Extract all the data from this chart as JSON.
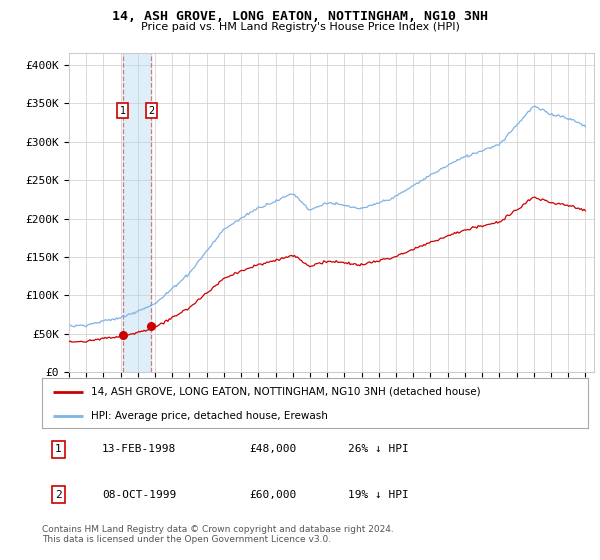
{
  "title": "14, ASH GROVE, LONG EATON, NOTTINGHAM, NG10 3NH",
  "subtitle": "Price paid vs. HM Land Registry's House Price Index (HPI)",
  "ylabel_ticks": [
    "£0",
    "£50K",
    "£100K",
    "£150K",
    "£200K",
    "£250K",
    "£300K",
    "£350K",
    "£400K"
  ],
  "ytick_values": [
    0,
    50000,
    100000,
    150000,
    200000,
    250000,
    300000,
    350000,
    400000
  ],
  "ylim": [
    0,
    415000
  ],
  "xlim_start": 1995.0,
  "xlim_end": 2025.5,
  "hpi_color": "#7fb2e5",
  "price_color": "#cc0000",
  "purchase_dates": [
    1998.12,
    1999.78
  ],
  "purchase_prices": [
    48000,
    60000
  ],
  "purchase_labels": [
    "1",
    "2"
  ],
  "shade_x1": 1998.12,
  "shade_x2": 1999.78,
  "legend_label1": "14, ASH GROVE, LONG EATON, NOTTINGHAM, NG10 3NH (detached house)",
  "legend_label2": "HPI: Average price, detached house, Erewash",
  "table_data": [
    {
      "num": "1",
      "date": "13-FEB-1998",
      "price": "£48,000",
      "hpi": "26% ↓ HPI"
    },
    {
      "num": "2",
      "date": "08-OCT-1999",
      "price": "£60,000",
      "hpi": "19% ↓ HPI"
    }
  ],
  "footnote": "Contains HM Land Registry data © Crown copyright and database right 2024.\nThis data is licensed under the Open Government Licence v3.0.",
  "background_color": "#ffffff",
  "grid_color": "#cccccc",
  "shade_color": "#dceef9"
}
